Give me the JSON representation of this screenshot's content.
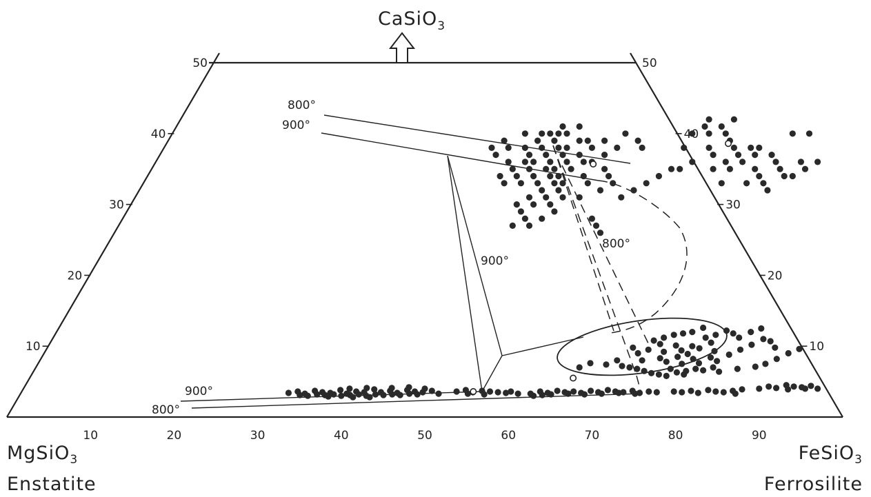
{
  "title": {
    "formula": "CaSiO",
    "sub": "3"
  },
  "corners": {
    "left": {
      "formula": "MgSiO",
      "sub": "3",
      "name": "Enstatite"
    },
    "right": {
      "formula": "FeSiO",
      "sub": "3",
      "name": "Ferrosilite"
    }
  },
  "bottom_ticks": [
    "10",
    "20",
    "30",
    "40",
    "50",
    "60",
    "70",
    "80",
    "90"
  ],
  "side_ticks": [
    "10",
    "20",
    "30",
    "40",
    "50"
  ],
  "isotherms": {
    "upper_800": "800°",
    "upper_900": "900°",
    "lower_900": "900°",
    "lower_800": "800°",
    "triangle_900": "900°",
    "triangle_800": "800°"
  },
  "upper_cluster_A": [
    [
      45,
      38
    ],
    [
      46,
      40
    ],
    [
      47,
      40
    ],
    [
      48,
      38
    ],
    [
      49,
      39
    ],
    [
      50,
      37
    ],
    [
      51,
      38
    ],
    [
      44,
      37
    ],
    [
      45,
      36
    ],
    [
      46,
      37
    ],
    [
      47,
      36
    ],
    [
      48,
      35
    ],
    [
      49,
      36
    ],
    [
      50,
      35
    ],
    [
      51,
      36
    ],
    [
      46,
      34
    ],
    [
      47,
      33
    ],
    [
      48,
      34
    ],
    [
      49,
      33
    ],
    [
      50,
      32
    ],
    [
      47,
      31
    ],
    [
      48,
      30
    ],
    [
      49,
      31
    ],
    [
      46,
      30
    ],
    [
      47,
      29
    ],
    [
      50,
      30
    ],
    [
      51,
      31
    ],
    [
      45,
      33
    ],
    [
      44,
      34
    ],
    [
      43,
      35
    ],
    [
      42,
      36
    ],
    [
      43,
      38
    ],
    [
      44,
      39
    ],
    [
      41,
      38
    ],
    [
      42,
      40
    ],
    [
      40,
      39
    ],
    [
      39,
      38
    ],
    [
      40,
      37
    ],
    [
      52,
      36
    ],
    [
      53,
      37
    ],
    [
      54,
      35
    ],
    [
      55,
      34
    ],
    [
      56,
      33
    ],
    [
      55,
      32
    ],
    [
      52,
      34
    ],
    [
      53,
      33
    ],
    [
      48,
      28
    ],
    [
      49,
      27
    ],
    [
      50,
      28
    ],
    [
      47,
      27
    ],
    [
      51,
      29
    ],
    [
      56,
      28
    ],
    [
      57,
      27
    ],
    [
      58,
      31
    ],
    [
      58,
      26
    ],
    [
      46,
      39
    ],
    [
      47,
      38
    ],
    [
      48,
      37
    ],
    [
      45,
      40
    ],
    [
      44,
      40
    ],
    [
      46,
      41
    ],
    [
      48,
      41
    ],
    [
      50,
      39
    ],
    [
      52,
      39
    ],
    [
      54,
      40
    ],
    [
      56,
      39
    ],
    [
      57,
      38
    ],
    [
      45,
      35
    ],
    [
      44,
      36
    ],
    [
      49,
      34
    ],
    [
      50,
      33
    ],
    [
      53,
      31
    ],
    [
      48,
      32
    ],
    [
      47,
      35
    ],
    [
      43,
      33
    ],
    [
      42,
      34
    ],
    [
      54,
      38
    ]
  ],
  "upper_cluster_B": [
    [
      62,
      40
    ],
    [
      63,
      41
    ],
    [
      64,
      40
    ],
    [
      65,
      41
    ],
    [
      66,
      40
    ],
    [
      67,
      39
    ],
    [
      68,
      38
    ],
    [
      69,
      37
    ],
    [
      70,
      36
    ],
    [
      71,
      37
    ],
    [
      72,
      35
    ],
    [
      73,
      34
    ],
    [
      74,
      36
    ],
    [
      75,
      35
    ],
    [
      76,
      34
    ],
    [
      73,
      37
    ],
    [
      70,
      38
    ],
    [
      68,
      36
    ],
    [
      66,
      37
    ],
    [
      65,
      38
    ],
    [
      64,
      36
    ],
    [
      62,
      35
    ],
    [
      61,
      34
    ],
    [
      60,
      33
    ],
    [
      63,
      35
    ],
    [
      67,
      35
    ],
    [
      69,
      35
    ],
    [
      72,
      33
    ],
    [
      74,
      33
    ],
    [
      59,
      32
    ],
    [
      78,
      35
    ],
    [
      77,
      34
    ],
    [
      71,
      38
    ],
    [
      79,
      36
    ],
    [
      74,
      40
    ],
    [
      76,
      40
    ],
    [
      63,
      42
    ],
    [
      66,
      42
    ],
    [
      62,
      38
    ],
    [
      69,
      33
    ],
    [
      75,
      32
    ],
    [
      77,
      36
    ]
  ],
  "lower_trend": [
    [
      32,
      3.4
    ],
    [
      33,
      3.6
    ],
    [
      34,
      3.3
    ],
    [
      35,
      3.7
    ],
    [
      36,
      3.5
    ],
    [
      37,
      3.4
    ],
    [
      38,
      3.8
    ],
    [
      39,
      3.3
    ],
    [
      40,
      3.6
    ],
    [
      41,
      3.5
    ],
    [
      42,
      3.9
    ],
    [
      43,
      3.5
    ],
    [
      44,
      3.7
    ],
    [
      45,
      3.4
    ],
    [
      46,
      3.8
    ],
    [
      47,
      3.6
    ],
    [
      48,
      3.5
    ],
    [
      49,
      3.7
    ],
    [
      50,
      3.3
    ],
    [
      38.5,
      3.0
    ],
    [
      39.5,
      3.1
    ],
    [
      40.5,
      3.2
    ],
    [
      41.5,
      3.0
    ],
    [
      42.5,
      3.2
    ],
    [
      36.5,
      3.1
    ],
    [
      37.5,
      3.2
    ],
    [
      43.5,
      3.1
    ],
    [
      44.5,
      3.2
    ],
    [
      45.5,
      3.1
    ],
    [
      46.5,
      3.3
    ],
    [
      47.5,
      3.2
    ],
    [
      35.5,
      3.2
    ],
    [
      34.5,
      3.0
    ],
    [
      33.5,
      3.1
    ],
    [
      39,
      4.0
    ],
    [
      41,
      4.1
    ],
    [
      44,
      4.1
    ],
    [
      46,
      4.2
    ],
    [
      48,
      4.0
    ],
    [
      40,
      2.8
    ],
    [
      42,
      2.8
    ],
    [
      37,
      2.9
    ],
    [
      52,
      3.6
    ],
    [
      53,
      3.8
    ],
    [
      54,
      3.5
    ],
    [
      55,
      3.7
    ],
    [
      56,
      3.6
    ],
    [
      57,
      3.5
    ],
    [
      58,
      3.4
    ],
    [
      53.5,
      3.3
    ],
    [
      55.5,
      3.2
    ],
    [
      58.5,
      3.6
    ],
    [
      59.5,
      3.3
    ],
    [
      61,
      3.3
    ],
    [
      62,
      3.6
    ],
    [
      63,
      3.4
    ],
    [
      64,
      3.7
    ],
    [
      65,
      3.5
    ],
    [
      66,
      3.6
    ],
    [
      67,
      3.4
    ],
    [
      68,
      3.7
    ],
    [
      69,
      3.5
    ],
    [
      70,
      3.8
    ],
    [
      71,
      3.6
    ],
    [
      72,
      3.5
    ],
    [
      73,
      3.7
    ],
    [
      74,
      3.4
    ],
    [
      75,
      3.6
    ],
    [
      76,
      3.5
    ],
    [
      61.5,
      3.0
    ],
    [
      62.5,
      3.1
    ],
    [
      63.5,
      3.2
    ],
    [
      65.5,
      3.3
    ],
    [
      67.5,
      3.2
    ],
    [
      69.5,
      3.3
    ],
    [
      71.5,
      3.4
    ],
    [
      73.5,
      3.3
    ],
    [
      78,
      3.6
    ],
    [
      79,
      3.5
    ],
    [
      80,
      3.7
    ],
    [
      81,
      3.4
    ],
    [
      82,
      3.8
    ],
    [
      83,
      3.6
    ],
    [
      84,
      3.5
    ],
    [
      85,
      3.7
    ],
    [
      86,
      3.9
    ],
    [
      85.5,
      3.3
    ],
    [
      88,
      4.0
    ],
    [
      89,
      4.3
    ],
    [
      90,
      4.1
    ],
    [
      91,
      4.5
    ],
    [
      92,
      4.3
    ],
    [
      93,
      4.2
    ],
    [
      94,
      4.4
    ],
    [
      95,
      4.0
    ],
    [
      91.5,
      3.9
    ],
    [
      93.5,
      4.0
    ]
  ],
  "lower_cluster": [
    [
      72,
      9.5
    ],
    [
      73,
      10.3
    ],
    [
      74,
      9.2
    ],
    [
      75,
      10.1
    ],
    [
      76,
      9.4
    ],
    [
      77,
      10.0
    ],
    [
      78,
      9.7
    ],
    [
      79,
      10.5
    ],
    [
      80,
      9.3
    ],
    [
      74,
      8.3
    ],
    [
      75,
      7.8
    ],
    [
      76,
      8.5
    ],
    [
      77,
      7.5
    ],
    [
      78,
      8.2
    ],
    [
      79,
      7.6
    ],
    [
      80,
      8.4
    ],
    [
      81,
      7.9
    ],
    [
      82,
      8.8
    ],
    [
      83,
      9.5
    ],
    [
      84,
      10.2
    ],
    [
      85,
      11.0
    ],
    [
      86,
      10.7
    ],
    [
      87,
      9.8
    ],
    [
      82,
      11.2
    ],
    [
      83,
      12.0
    ],
    [
      84,
      12.5
    ],
    [
      81,
      11.8
    ],
    [
      80,
      12.2
    ],
    [
      79,
      11.6
    ],
    [
      78,
      11.2
    ],
    [
      76,
      12.0
    ],
    [
      74,
      11.6
    ],
    [
      73,
      11.2
    ],
    [
      72,
      10.8
    ],
    [
      70,
      7.2
    ],
    [
      71,
      7.0
    ],
    [
      72,
      6.8
    ],
    [
      73,
      6.5
    ],
    [
      74,
      6.2
    ],
    [
      75,
      6.0
    ],
    [
      76,
      5.8
    ],
    [
      77,
      6.3
    ],
    [
      78,
      6.5
    ],
    [
      79,
      6.8
    ],
    [
      80,
      6.6
    ],
    [
      81,
      7.0
    ],
    [
      82,
      6.4
    ],
    [
      84,
      6.8
    ],
    [
      86,
      7.1
    ],
    [
      87,
      7.5
    ],
    [
      88,
      8.2
    ],
    [
      89,
      9.0
    ],
    [
      90,
      9.6
    ],
    [
      68,
      7.4
    ],
    [
      69,
      8.0
    ],
    [
      66,
      7.6
    ],
    [
      65,
      7.0
    ],
    [
      71,
      9.0
    ],
    [
      70,
      9.8
    ],
    [
      72,
      8.0
    ],
    [
      76,
      6.8
    ],
    [
      77,
      8.9
    ],
    [
      78,
      6.0
    ],
    [
      75,
      11.8
    ],
    [
      77,
      12.6
    ]
  ],
  "open_points": [
    [
      52.3,
      35.7
    ],
    [
      67,
      38.6
    ],
    [
      65,
      5.5
    ],
    [
      54,
      3.6
    ]
  ]
}
